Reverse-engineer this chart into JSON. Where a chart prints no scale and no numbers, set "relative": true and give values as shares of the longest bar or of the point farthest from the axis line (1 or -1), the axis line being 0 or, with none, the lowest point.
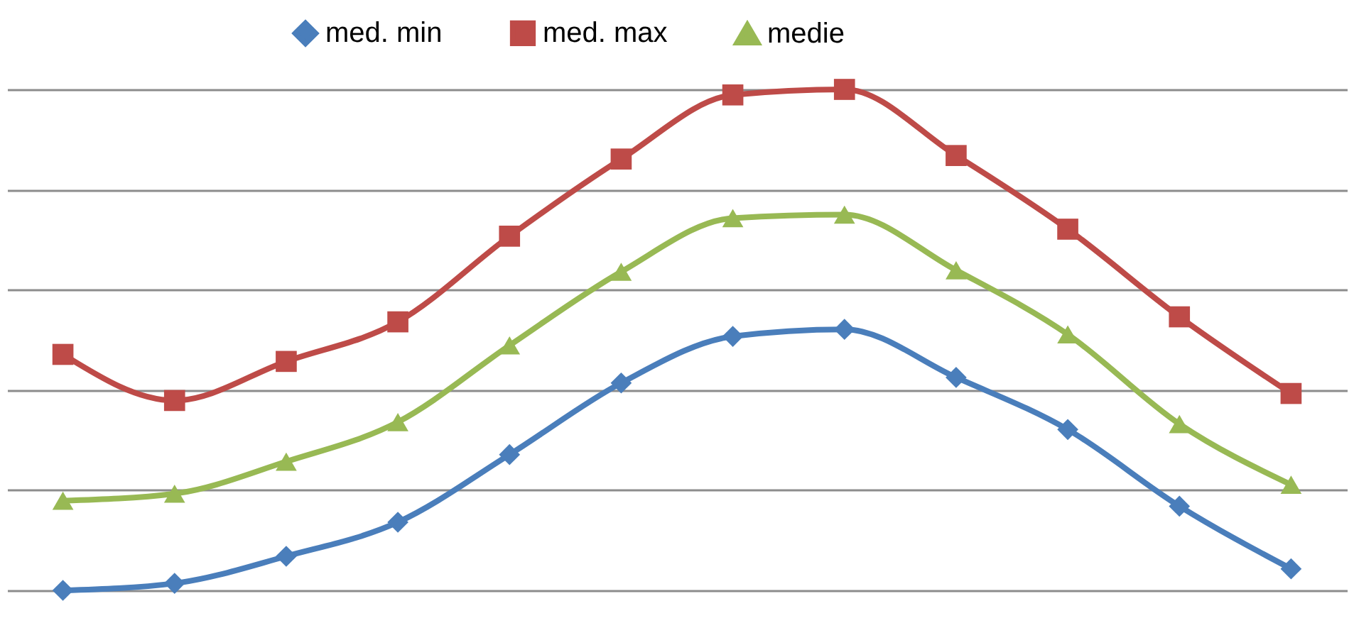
{
  "chart_data": {
    "type": "line",
    "relative": true,
    "categories": [
      null,
      null,
      null,
      null,
      null,
      null,
      null,
      null,
      null,
      null,
      null,
      null
    ],
    "series": [
      {
        "name": "med. min",
        "color": "#4a7ebb",
        "marker": "diamond",
        "values": [
          0,
          0.014,
          0.068,
          0.136,
          0.271,
          0.414,
          0.507,
          0.521,
          0.425,
          0.321,
          0.168,
          0.043
        ]
      },
      {
        "name": "med. max",
        "color": "#be4b48",
        "marker": "square",
        "values": [
          0.471,
          0.379,
          0.457,
          0.536,
          0.707,
          0.861,
          0.989,
          1,
          0.868,
          0.721,
          0.546,
          0.393
        ]
      },
      {
        "name": "medie",
        "color": "#98b954",
        "marker": "triangle",
        "values": [
          0.179,
          0.193,
          0.257,
          0.336,
          0.489,
          0.636,
          0.743,
          0.75,
          0.639,
          0.511,
          0.332,
          0.211
        ]
      }
    ],
    "grid": "y",
    "legend": "top",
    "line_style": "solid"
  }
}
